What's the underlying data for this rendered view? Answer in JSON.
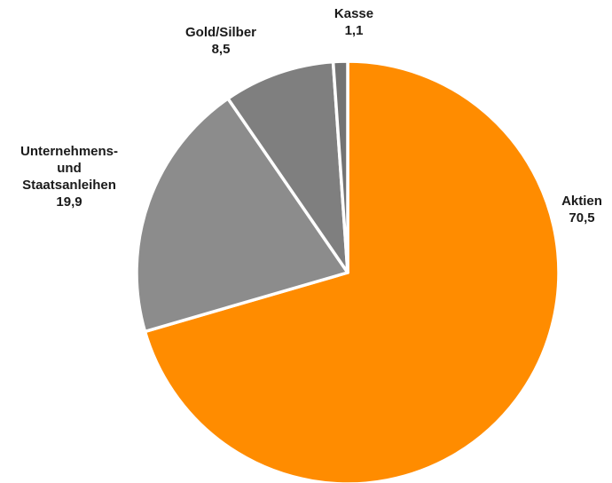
{
  "chart_data": {
    "type": "pie",
    "start_angle_deg": 0,
    "direction": "clockwise",
    "slices": [
      {
        "label_lines": [
          "Aktien"
        ],
        "value": 70.5,
        "value_text": "70,5",
        "color": "#FF8C00"
      },
      {
        "label_lines": [
          "Unternehmens-",
          "und",
          "Staatsanleihen"
        ],
        "value": 19.9,
        "value_text": "19,9",
        "color": "#8C8C8C"
      },
      {
        "label_lines": [
          "Gold/Silber"
        ],
        "value": 8.5,
        "value_text": "8,5",
        "color": "#7F7F7F"
      },
      {
        "label_lines": [
          "Kasse"
        ],
        "value": 1.1,
        "value_text": "1,1",
        "color": "#737373"
      }
    ]
  }
}
